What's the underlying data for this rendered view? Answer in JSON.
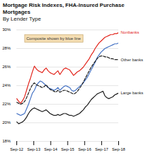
{
  "chart_data": {
    "type": "line",
    "title": "Mortgage Risk Indexes, FHA-Insured Purchase Mortgages",
    "subtitle": "By Lender Type",
    "annotation": "Composite shown by blue line",
    "x": [
      0,
      0.1154,
      0.2308,
      0.3462,
      0.4615,
      0.5769,
      0.6923,
      0.8077,
      0.9231,
      1.0385,
      1.1538,
      1.2692,
      1.3846,
      1.5,
      1.6154,
      1.7308,
      1.8462,
      1.9615,
      2.0769,
      2.1923,
      2.3077,
      2.4231,
      2.5385,
      2.6538,
      2.7692,
      2.8846,
      3,
      3.1154,
      3.2308,
      3.3462,
      3.4615,
      3.5769,
      3.6923,
      3.8077,
      3.9231,
      4.0385,
      4.1538,
      4.2692,
      4.3846,
      4.5,
      4.6154,
      4.7308,
      4.8462,
      4.9615,
      5.0769,
      5.1923,
      5.3077,
      5.4231,
      5.5385,
      5.6538,
      5.7692,
      5.8846,
      6
    ],
    "series": [
      {
        "name": "Nonbanks",
        "color": "#e2231a",
        "values": [
          22.6,
          22.3,
          22.1,
          22.4,
          22.8,
          23.5,
          24.2,
          24.8,
          25.5,
          26.1,
          25.8,
          25.6,
          25.5,
          25.4,
          25.7,
          25.9,
          25.6,
          25.4,
          25.3,
          25.2,
          25.4,
          25.6,
          25.2,
          25.5,
          25.8,
          25.9,
          25.8,
          25.7,
          25.4,
          25.1,
          25.3,
          25.5,
          25.6,
          25.8,
          26.0,
          26.3,
          26.6,
          26.9,
          27.3,
          27.6,
          28.0,
          28.3,
          28.6,
          28.8,
          29.0,
          29.2,
          29.3,
          29.4,
          29.5,
          29.5,
          29.6,
          29.6,
          29.7
        ]
      },
      {
        "color": "#4472c4",
        "values": [
          21.0,
          20.9,
          20.8,
          20.9,
          21.0,
          21.5,
          22.0,
          22.6,
          23.2,
          23.5,
          24.0,
          24.3,
          24.5,
          24.4,
          24.2,
          24.0,
          23.8,
          23.7,
          23.6,
          23.5,
          23.6,
          23.8,
          23.5,
          23.7,
          23.9,
          24.0,
          23.9,
          23.8,
          23.5,
          23.4,
          23.5,
          23.7,
          23.9,
          24.1,
          24.3,
          24.6,
          24.9,
          25.3,
          25.7,
          26.1,
          26.5,
          27.0,
          27.3,
          27.6,
          27.8,
          28.0,
          28.1,
          28.2,
          28.3,
          28.4,
          28.5,
          28.5,
          28.6
        ]
      },
      {
        "name": "Other banks",
        "color": "#1a1a1a",
        "line_style": "dashed",
        "values": [
          22.2,
          22.1,
          22.0,
          22.1,
          22.3,
          22.7,
          23.2,
          23.7,
          24.1,
          24.3,
          24.1,
          24.0,
          23.9,
          23.8,
          23.9,
          24.1,
          23.8,
          23.6,
          23.5,
          23.4,
          23.3,
          23.5,
          23.3,
          23.4,
          23.5,
          23.5,
          23.4,
          23.3,
          23.2,
          23.1,
          23.2,
          23.4,
          23.7,
          24.0,
          24.4,
          24.8,
          25.2,
          25.6,
          26.0,
          26.3,
          26.6,
          26.9,
          27.1,
          27.2,
          27.2,
          27.1,
          27.1,
          27.0,
          26.9,
          26.9,
          26.8,
          26.8,
          26.8
        ]
      },
      {
        "name": "Large banks",
        "color": "#1a1a1a",
        "values": [
          20.1,
          19.9,
          20.0,
          20.1,
          20.3,
          20.6,
          21.0,
          21.3,
          21.5,
          21.6,
          21.5,
          21.4,
          21.3,
          21.2,
          21.3,
          21.4,
          21.2,
          21.0,
          20.9,
          20.8,
          20.8,
          20.9,
          20.8,
          20.9,
          21.0,
          21.0,
          20.9,
          20.8,
          20.8,
          20.7,
          20.8,
          20.9,
          21.0,
          21.2,
          21.4,
          21.7,
          21.9,
          22.2,
          22.5,
          22.7,
          22.9,
          23.1,
          23.2,
          23.3,
          23.4,
          22.9,
          22.7,
          22.6,
          22.7,
          22.8,
          23.0,
          23.1,
          23.2
        ]
      }
    ],
    "xlim": [
      0,
      6
    ],
    "xticks": [
      {
        "value": 0,
        "label": "Sep-12"
      },
      {
        "value": 1,
        "label": "Sep-13"
      },
      {
        "value": 2,
        "label": "Sep-14"
      },
      {
        "value": 3,
        "label": "Sep-15"
      },
      {
        "value": 4,
        "label": "Sep-16"
      },
      {
        "value": 5,
        "label": "Sep-17"
      },
      {
        "value": 6,
        "label": "Sep-18"
      }
    ],
    "ylim": [
      18,
      30
    ],
    "yticks": [
      {
        "value": 18,
        "label": "18%"
      },
      {
        "value": 20,
        "label": "20%"
      },
      {
        "value": 22,
        "label": "22%"
      },
      {
        "value": 24,
        "label": "24%"
      },
      {
        "value": 26,
        "label": "26%"
      },
      {
        "value": 28,
        "label": "28%"
      },
      {
        "value": 30,
        "label": "30%"
      }
    ],
    "grid": "y"
  }
}
